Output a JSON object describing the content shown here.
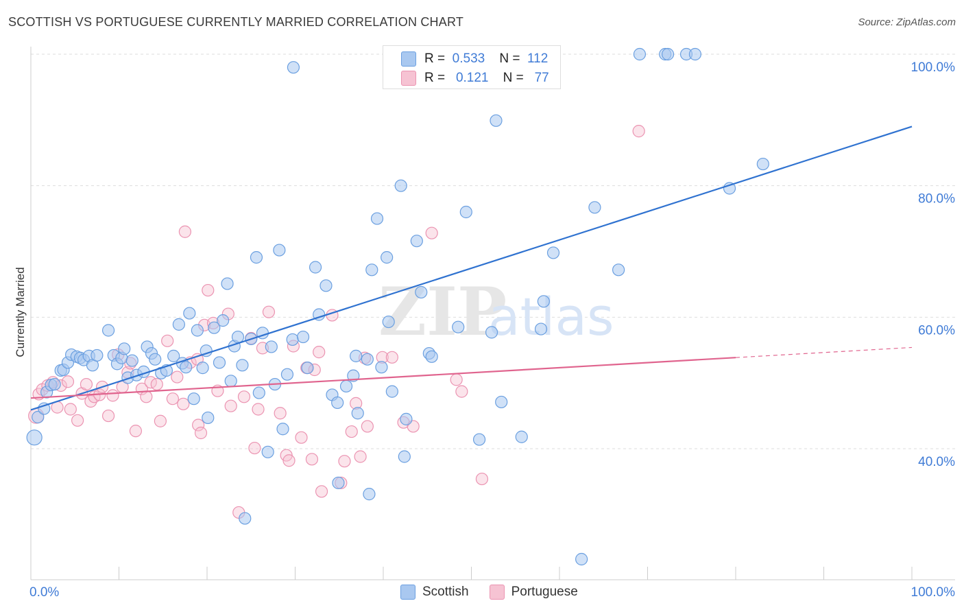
{
  "title": "SCOTTISH VS PORTUGUESE CURRENTLY MARRIED CORRELATION CHART",
  "source": "Source: ZipAtlas.com",
  "watermark": {
    "zip": "ZIP",
    "atlas": "atlas"
  },
  "legend": {
    "rows": [
      {
        "r_label": "R =",
        "r_value": "0.533",
        "n_label": "N =",
        "n_value": "112"
      },
      {
        "r_label": "R =",
        "r_value": "0.121",
        "n_label": "N =",
        "n_value": "77"
      }
    ]
  },
  "bottom_legend": {
    "series1": "Scottish",
    "series2": "Portuguese"
  },
  "colors": {
    "scottish_fill": "#a9c8f0",
    "scottish_stroke": "#6a9fe0",
    "scottish_line": "#2f72d0",
    "portuguese_fill": "#f6c3d3",
    "portuguese_stroke": "#eb93b1",
    "portuguese_line": "#e0648e",
    "tick_label": "#3f7bd6",
    "grid": "#dddddd"
  },
  "chart_data": {
    "type": "scatter",
    "title": "SCOTTISH VS PORTUGUESE CURRENTLY MARRIED CORRELATION CHART",
    "xlabel": "",
    "ylabel": "Currently Married",
    "xlim": [
      0,
      100
    ],
    "ylim": [
      22,
      102
    ],
    "x_tick_labels": [
      "0.0%",
      "100.0%"
    ],
    "y_ticks": [
      40,
      60,
      80,
      100
    ],
    "y_tick_labels": [
      "40.0%",
      "60.0%",
      "80.0%",
      "100.0%"
    ],
    "series": [
      {
        "name": "Scottish",
        "r": 0.533,
        "n": 112,
        "trend": {
          "x": [
            0,
            100
          ],
          "y": [
            45.9,
            89.0
          ],
          "dash_from": null
        },
        "points": [
          [
            0.4,
            41.7
          ],
          [
            0.8,
            44.8
          ],
          [
            1.5,
            46.1
          ],
          [
            1.8,
            48.6
          ],
          [
            2.3,
            49.7
          ],
          [
            2.7,
            49.8
          ],
          [
            3.4,
            51.9
          ],
          [
            3.7,
            52.0
          ],
          [
            4.2,
            53.1
          ],
          [
            4.6,
            54.3
          ],
          [
            5.2,
            54.0
          ],
          [
            5.6,
            53.8
          ],
          [
            6.0,
            53.5
          ],
          [
            6.6,
            54.1
          ],
          [
            7.0,
            52.7
          ],
          [
            7.5,
            54.2
          ],
          [
            8.8,
            58.0
          ],
          [
            9.4,
            54.2
          ],
          [
            9.8,
            52.9
          ],
          [
            10.3,
            53.8
          ],
          [
            10.6,
            55.2
          ],
          [
            11.0,
            50.8
          ],
          [
            11.5,
            53.4
          ],
          [
            12.0,
            51.2
          ],
          [
            12.8,
            51.7
          ],
          [
            13.2,
            55.5
          ],
          [
            13.7,
            54.5
          ],
          [
            14.1,
            53.6
          ],
          [
            14.8,
            51.5
          ],
          [
            15.4,
            51.9
          ],
          [
            16.2,
            54.1
          ],
          [
            16.8,
            58.9
          ],
          [
            17.2,
            53.0
          ],
          [
            17.6,
            52.4
          ],
          [
            18.0,
            60.6
          ],
          [
            18.5,
            47.6
          ],
          [
            18.9,
            58.0
          ],
          [
            19.5,
            52.3
          ],
          [
            19.9,
            54.9
          ],
          [
            20.1,
            44.7
          ],
          [
            20.8,
            58.4
          ],
          [
            21.4,
            53.1
          ],
          [
            21.8,
            59.5
          ],
          [
            22.3,
            65.1
          ],
          [
            22.7,
            50.3
          ],
          [
            23.1,
            55.6
          ],
          [
            23.5,
            57.0
          ],
          [
            24.0,
            52.7
          ],
          [
            25.0,
            56.7
          ],
          [
            25.6,
            69.1
          ],
          [
            25.9,
            48.5
          ],
          [
            26.3,
            57.6
          ],
          [
            26.9,
            39.5
          ],
          [
            27.3,
            55.5
          ],
          [
            27.7,
            49.8
          ],
          [
            28.2,
            70.2
          ],
          [
            28.6,
            43.0
          ],
          [
            29.1,
            51.3
          ],
          [
            29.7,
            56.6
          ],
          [
            30.9,
            57.0
          ],
          [
            31.4,
            52.3
          ],
          [
            32.3,
            67.6
          ],
          [
            32.7,
            60.4
          ],
          [
            33.5,
            64.8
          ],
          [
            34.2,
            48.2
          ],
          [
            34.8,
            47.0
          ],
          [
            35.8,
            49.5
          ],
          [
            36.6,
            51.1
          ],
          [
            36.9,
            54.1
          ],
          [
            37.1,
            45.4
          ],
          [
            38.2,
            53.6
          ],
          [
            38.4,
            33.1
          ],
          [
            38.7,
            67.2
          ],
          [
            39.3,
            75.0
          ],
          [
            39.8,
            52.4
          ],
          [
            40.6,
            59.3
          ],
          [
            40.4,
            69.1
          ],
          [
            41.0,
            48.7
          ],
          [
            42.0,
            80.0
          ],
          [
            42.4,
            38.8
          ],
          [
            42.6,
            44.5
          ],
          [
            43.8,
            71.6
          ],
          [
            44.3,
            63.8
          ],
          [
            45.2,
            54.5
          ],
          [
            45.5,
            54.0
          ],
          [
            48.5,
            58.5
          ],
          [
            49.4,
            76.0
          ],
          [
            50.9,
            41.4
          ],
          [
            52.3,
            57.7
          ],
          [
            52.8,
            89.9
          ],
          [
            53.4,
            47.1
          ],
          [
            55.7,
            41.8
          ],
          [
            57.9,
            58.2
          ],
          [
            58.2,
            62.4
          ],
          [
            59.3,
            69.8
          ],
          [
            62.5,
            23.2
          ],
          [
            64.0,
            76.7
          ],
          [
            66.7,
            67.2
          ],
          [
            69.1,
            100.0
          ],
          [
            72.0,
            100.0
          ],
          [
            72.3,
            100.0
          ],
          [
            74.4,
            100.0
          ],
          [
            75.4,
            100.0
          ],
          [
            79.3,
            79.6
          ],
          [
            83.1,
            83.3
          ],
          [
            29.8,
            98.0
          ],
          [
            34.9,
            34.8
          ],
          [
            24.3,
            29.4
          ]
        ]
      },
      {
        "name": "Portuguese",
        "r": 0.121,
        "n": 77,
        "trend": {
          "x": [
            0,
            100
          ],
          "y": [
            47.7,
            55.4
          ],
          "dash_from": 80
        },
        "points": [
          [
            0.6,
            45.0
          ],
          [
            0.9,
            48.3
          ],
          [
            1.3,
            49.0
          ],
          [
            1.9,
            49.6
          ],
          [
            2.5,
            50.1
          ],
          [
            3.0,
            46.3
          ],
          [
            3.4,
            49.6
          ],
          [
            4.2,
            50.2
          ],
          [
            4.5,
            46.0
          ],
          [
            5.3,
            44.3
          ],
          [
            5.8,
            48.4
          ],
          [
            6.3,
            49.8
          ],
          [
            6.8,
            47.2
          ],
          [
            7.2,
            47.9
          ],
          [
            7.8,
            48.2
          ],
          [
            8.1,
            49.4
          ],
          [
            8.8,
            45.0
          ],
          [
            9.3,
            48.1
          ],
          [
            9.9,
            54.3
          ],
          [
            10.4,
            49.4
          ],
          [
            11.0,
            51.6
          ],
          [
            11.3,
            53.0
          ],
          [
            11.9,
            42.7
          ],
          [
            12.6,
            49.1
          ],
          [
            13.1,
            47.9
          ],
          [
            13.6,
            50.1
          ],
          [
            14.3,
            49.8
          ],
          [
            14.7,
            44.2
          ],
          [
            15.5,
            56.4
          ],
          [
            16.1,
            47.6
          ],
          [
            16.6,
            50.9
          ],
          [
            17.3,
            46.8
          ],
          [
            17.5,
            73.0
          ],
          [
            18.1,
            53.1
          ],
          [
            18.9,
            53.6
          ],
          [
            19.0,
            43.6
          ],
          [
            19.3,
            42.4
          ],
          [
            19.7,
            58.8
          ],
          [
            20.1,
            64.1
          ],
          [
            20.7,
            59.1
          ],
          [
            21.2,
            48.8
          ],
          [
            22.4,
            60.5
          ],
          [
            22.7,
            46.5
          ],
          [
            23.6,
            30.3
          ],
          [
            24.2,
            47.9
          ],
          [
            25.0,
            56.8
          ],
          [
            25.4,
            40.1
          ],
          [
            25.8,
            46.0
          ],
          [
            26.3,
            55.3
          ],
          [
            27.0,
            60.8
          ],
          [
            28.3,
            45.4
          ],
          [
            29.0,
            39.0
          ],
          [
            29.3,
            38.2
          ],
          [
            29.8,
            55.6
          ],
          [
            30.7,
            41.7
          ],
          [
            31.3,
            52.3
          ],
          [
            31.9,
            38.4
          ],
          [
            32.2,
            52.0
          ],
          [
            32.7,
            54.7
          ],
          [
            33.0,
            33.5
          ],
          [
            34.2,
            60.3
          ],
          [
            35.2,
            34.8
          ],
          [
            35.6,
            38.1
          ],
          [
            36.4,
            42.6
          ],
          [
            37.4,
            38.8
          ],
          [
            37.9,
            53.8
          ],
          [
            38.2,
            43.4
          ],
          [
            39.9,
            53.9
          ],
          [
            41.0,
            53.9
          ],
          [
            42.3,
            44.0
          ],
          [
            43.4,
            43.4
          ],
          [
            45.5,
            72.8
          ],
          [
            48.3,
            50.5
          ],
          [
            48.9,
            48.7
          ],
          [
            51.2,
            35.4
          ],
          [
            69.0,
            88.3
          ],
          [
            36.9,
            46.9
          ]
        ]
      }
    ]
  }
}
